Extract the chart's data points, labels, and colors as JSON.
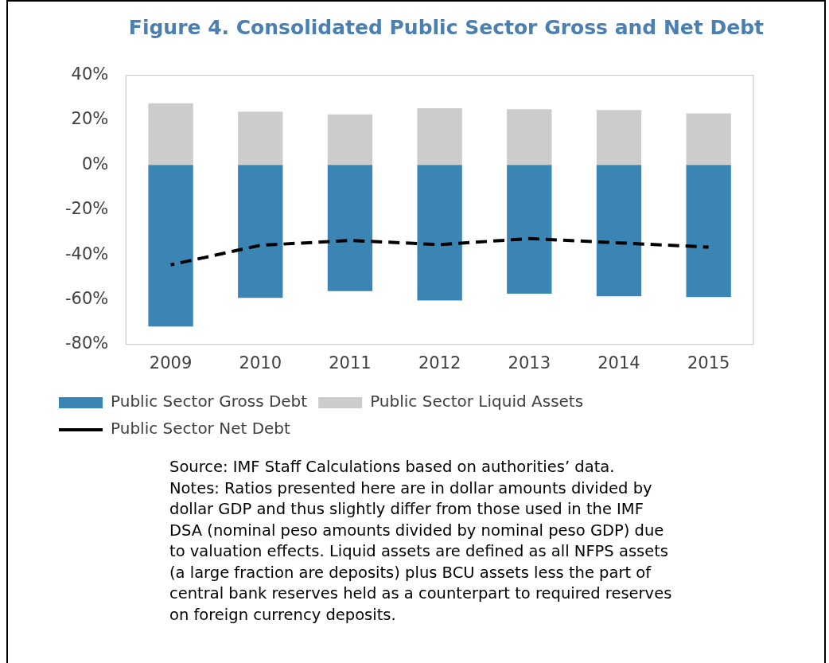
{
  "chart_data": {
    "type": "bar",
    "title": "Figure 4. Consolidated Public Sector Gross and Net Debt",
    "categories": [
      "2009",
      "2010",
      "2011",
      "2012",
      "2013",
      "2014",
      "2015"
    ],
    "series": [
      {
        "name": "Public Sector Gross Debt",
        "color": "#3a85b3",
        "values": [
          -72,
          -59.2,
          -56.2,
          -60.4,
          -57.4,
          -58.5,
          -58.9
        ]
      },
      {
        "name": "Public Sector Liquid Assets",
        "color": "#cccccc",
        "values": [
          27.5,
          23.8,
          22.6,
          25.3,
          24.9,
          24.5,
          23
        ]
      },
      {
        "name": "Public Sector Net Debt",
        "type": "line",
        "color": "#000000",
        "line_style": "dashed",
        "marker": "none",
        "values": [
          -44.5,
          -35.8,
          -33.6,
          -35.5,
          -32.8,
          -34.7,
          -36.6
        ]
      }
    ],
    "stacked": true,
    "ylim": [
      -80,
      40
    ],
    "yticks": [
      {
        "value": -80,
        "label": "-80%"
      },
      {
        "value": -60,
        "label": "-60%"
      },
      {
        "value": -40,
        "label": "-40%"
      },
      {
        "value": -20,
        "label": "-20%"
      },
      {
        "value": 0,
        "label": "0%"
      },
      {
        "value": 20,
        "label": "20%"
      },
      {
        "value": 40,
        "label": "40%"
      }
    ],
    "grid": false,
    "legend": "bottom",
    "annotations": [
      "Source: IMF Staff Calculations based on authorities’ data.\nNotes: Ratios presented here are in dollar amounts divided by dollar GDP and thus slightly differ from those used in the IMF DSA (nominal peso amounts divided by nominal peso GDP) due to valuation effects. Liquid assets are defined as all NFPS assets (a large fraction are deposits) plus BCU assets less the part of central bank reserves held as a counterpart to required reserves on foreign currency deposits."
    ]
  }
}
